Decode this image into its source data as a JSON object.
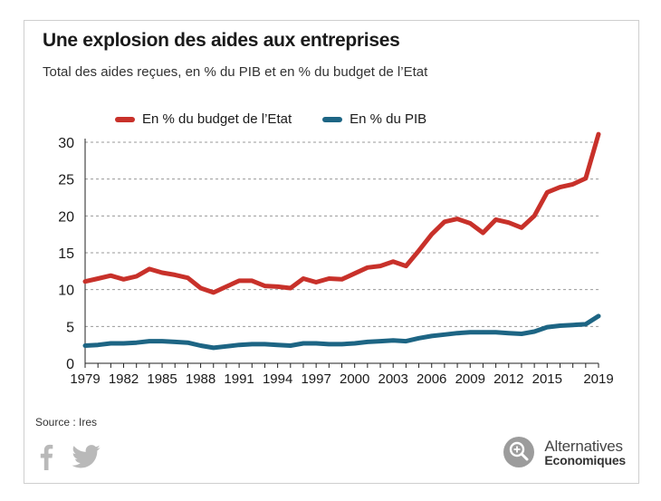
{
  "title": "Une explosion des aides aux entreprises",
  "subtitle": "Total des aides reçues, en % du PIB et en % du budget de l’Etat",
  "source": "Source : Ires",
  "brand": {
    "line1": "Alternatives",
    "line2": "Economiques"
  },
  "colors": {
    "budget": "#c8312a",
    "pib": "#1d6584",
    "grid": "#999999",
    "axis": "#222222"
  },
  "icons": {
    "facebook": "facebook-icon",
    "twitter": "twitter-icon",
    "logo": "magnifier-logo-icon"
  },
  "chart_data": {
    "type": "line",
    "xlim": [
      1979,
      2019
    ],
    "ylim": [
      0,
      30
    ],
    "yticks": [
      0,
      5,
      10,
      15,
      20,
      25,
      30
    ],
    "xtick_labels": [
      "1979",
      "1982",
      "1985",
      "1988",
      "1991",
      "1994",
      "1997",
      "2000",
      "2003",
      "2006",
      "2009",
      "2012",
      "2015",
      "2019"
    ],
    "grid": "horizontal-dashed",
    "legend": "top",
    "series": [
      {
        "name": "En % du budget de l’Etat",
        "color": "#c8312a",
        "x": [
          1979,
          1980,
          1981,
          1982,
          1983,
          1984,
          1985,
          1986,
          1987,
          1988,
          1989,
          1990,
          1991,
          1992,
          1993,
          1994,
          1995,
          1996,
          1997,
          1998,
          1999,
          2000,
          2001,
          2002,
          2003,
          2004,
          2005,
          2006,
          2007,
          2008,
          2009,
          2010,
          2011,
          2012,
          2013,
          2014,
          2015,
          2016,
          2017,
          2018,
          2019
        ],
        "y": [
          11.1,
          11.5,
          11.9,
          11.4,
          11.8,
          12.8,
          12.3,
          12.0,
          11.6,
          10.2,
          9.6,
          10.4,
          11.2,
          11.2,
          10.5,
          10.4,
          10.2,
          11.5,
          11.0,
          11.5,
          11.4,
          12.2,
          13.0,
          13.2,
          13.8,
          13.2,
          15.3,
          17.5,
          19.2,
          19.6,
          19.0,
          17.7,
          19.5,
          19.1,
          18.4,
          20.0,
          23.2,
          23.9,
          24.3,
          25.1,
          31.1
        ]
      },
      {
        "name": "En % du PIB",
        "color": "#1d6584",
        "x": [
          1979,
          1980,
          1981,
          1982,
          1983,
          1984,
          1985,
          1986,
          1987,
          1988,
          1989,
          1990,
          1991,
          1992,
          1993,
          1994,
          1995,
          1996,
          1997,
          1998,
          1999,
          2000,
          2001,
          2002,
          2003,
          2004,
          2005,
          2006,
          2007,
          2008,
          2009,
          2010,
          2011,
          2012,
          2013,
          2014,
          2015,
          2016,
          2017,
          2018,
          2019
        ],
        "y": [
          2.4,
          2.5,
          2.7,
          2.7,
          2.8,
          3.0,
          3.0,
          2.9,
          2.8,
          2.4,
          2.1,
          2.3,
          2.5,
          2.6,
          2.6,
          2.5,
          2.4,
          2.7,
          2.7,
          2.6,
          2.6,
          2.7,
          2.9,
          3.0,
          3.1,
          3.0,
          3.4,
          3.7,
          3.9,
          4.1,
          4.2,
          4.2,
          4.2,
          4.1,
          4.0,
          4.3,
          4.9,
          5.1,
          5.2,
          5.3,
          6.4
        ]
      }
    ]
  }
}
